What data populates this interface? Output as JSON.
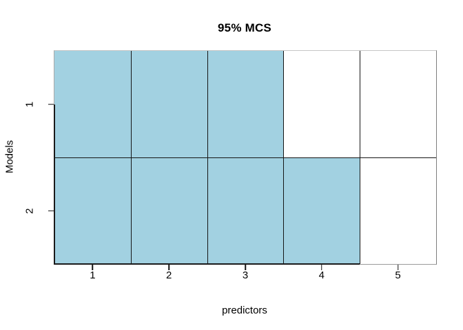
{
  "figure": {
    "background": "#ffffff"
  },
  "chart_data": {
    "type": "heatmap",
    "title": "95% MCS",
    "xlabel": "predictors",
    "ylabel": "Models",
    "x_ticks": [
      "1",
      "2",
      "3",
      "4",
      "5"
    ],
    "y_ticks": [
      "1",
      "2"
    ],
    "x_range": [
      0.5,
      5.5
    ],
    "grid": true,
    "legend": "none",
    "rows": [
      {
        "model": "1",
        "included": [
          1,
          1,
          1,
          0,
          0
        ]
      },
      {
        "model": "2",
        "included": [
          1,
          1,
          1,
          1,
          0
        ]
      }
    ],
    "colors": {
      "included_fill": "#a2d1e1",
      "excluded_fill": "#ffffff",
      "grid_line": "#141414",
      "box_line": "#8a8a8a",
      "text": "#000000"
    }
  }
}
